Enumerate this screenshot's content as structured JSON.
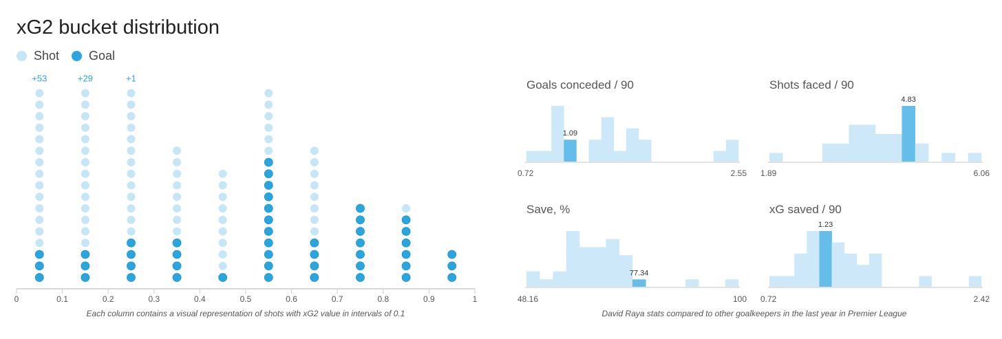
{
  "title": "xG2 bucket distribution",
  "legend": [
    {
      "label": "Shot",
      "color": "#c5e6f7"
    },
    {
      "label": "Goal",
      "color": "#29a6e0"
    }
  ],
  "colors": {
    "shot": "#c5e6f7",
    "goal": "#29a6e0",
    "overflow_label": "#29a6e0",
    "bar": "#cde8f8",
    "bar_highlight": "#65bde9"
  },
  "left_note": "Each column contains a visual representation of shots with xG2 value in intervals of 0.1",
  "right_note": "David Raya stats compared to other goalkeepers in the last year in Premier League",
  "chart_data": [
    {
      "type": "scatter",
      "title": "xG2 bucket distribution",
      "x_ticks": [
        "0",
        "0.1",
        "0.2",
        "0.3",
        "0.4",
        "0.5",
        "0.6",
        "0.7",
        "0.8",
        "0.9",
        "1"
      ],
      "xlim": [
        0,
        1
      ],
      "columns": [
        {
          "x": 0.05,
          "shots": 17,
          "goals": 3,
          "overflow": "+53"
        },
        {
          "x": 0.15,
          "shots": 17,
          "goals": 3,
          "overflow": "+29"
        },
        {
          "x": 0.25,
          "shots": 17,
          "goals": 4,
          "overflow": "+1"
        },
        {
          "x": 0.35,
          "shots": 12,
          "goals": 4,
          "overflow": ""
        },
        {
          "x": 0.45,
          "shots": 10,
          "goals": 1,
          "overflow": ""
        },
        {
          "x": 0.55,
          "shots": 17,
          "goals": 11,
          "overflow": ""
        },
        {
          "x": 0.65,
          "shots": 12,
          "goals": 4,
          "overflow": ""
        },
        {
          "x": 0.75,
          "shots": 7,
          "goals": 7,
          "overflow": ""
        },
        {
          "x": 0.85,
          "shots": 7,
          "goals": 6,
          "overflow": ""
        },
        {
          "x": 0.95,
          "shots": 3,
          "goals": 3,
          "overflow": ""
        }
      ]
    },
    {
      "type": "bar",
      "title": "Goals conceded / 90",
      "min_label": "0.72",
      "max_label": "2.55",
      "values": [
        1,
        1,
        5,
        2,
        0,
        2,
        4,
        1,
        3,
        2,
        0,
        0,
        0,
        0,
        0,
        1,
        2
      ],
      "highlight_index": 3,
      "highlight_label": "1.09"
    },
    {
      "type": "bar",
      "title": "Shots faced / 90",
      "min_label": "1.89",
      "max_label": "6.06",
      "values": [
        1,
        0,
        0,
        0,
        2,
        2,
        4,
        4,
        3,
        3,
        6,
        2,
        0,
        1,
        0,
        1
      ],
      "highlight_index": 10,
      "highlight_label": "4.83"
    },
    {
      "type": "bar",
      "title": "Save, %",
      "min_label": "48.16",
      "max_label": "100",
      "values": [
        2,
        1,
        2,
        7,
        5,
        5,
        6,
        4,
        1,
        0,
        0,
        0,
        1,
        0,
        0,
        1
      ],
      "highlight_index": 8,
      "highlight_label": "77.34"
    },
    {
      "type": "bar",
      "title": "xG saved / 90",
      "min_label": "0.72",
      "max_label": "2.42",
      "values": [
        1,
        1,
        3,
        5,
        5,
        4,
        3,
        2,
        3,
        0,
        0,
        0,
        1,
        0,
        0,
        0,
        1
      ],
      "highlight_index": 4,
      "highlight_label": "1.23"
    }
  ]
}
